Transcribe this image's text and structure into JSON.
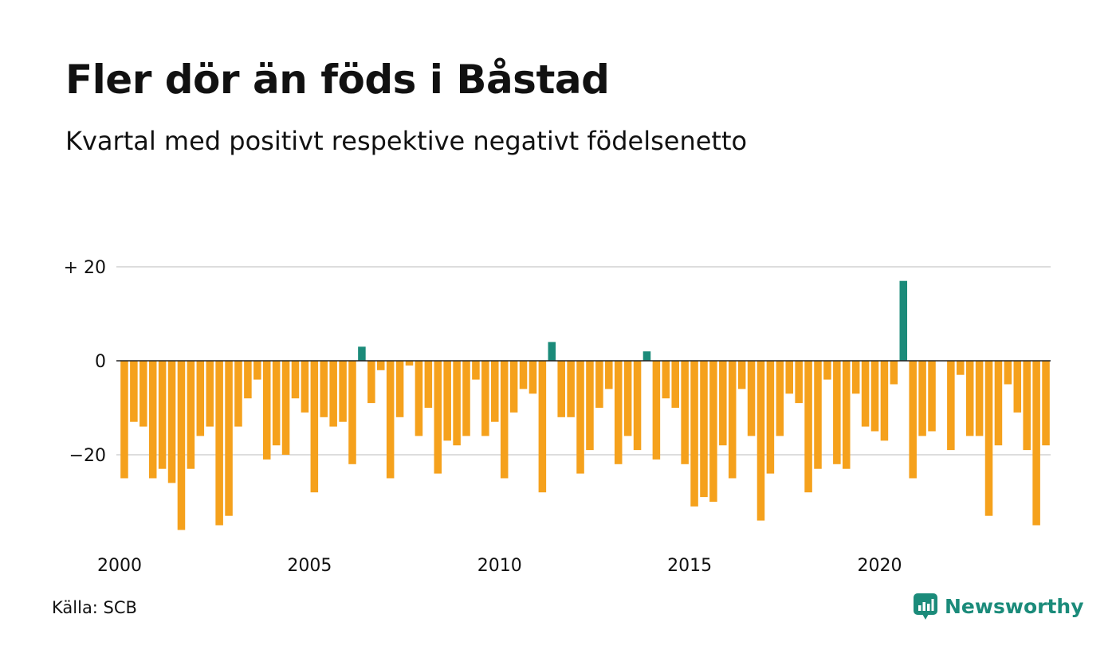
{
  "title": "Fler dör än föds i Båstad",
  "subtitle": "Kvartal med positivt respektive negativt födelsenetto",
  "source": "Källa: SCB",
  "brand": "Newsworthy",
  "colors": {
    "positive": "#1b8b7a",
    "negative": "#f5a11c",
    "grid": "#dddddd",
    "zero_line": "#222222",
    "brand": "#1b8b7a"
  },
  "chart_data": {
    "type": "bar",
    "title": "Fler dör än föds i Båstad",
    "subtitle": "Kvartal med positivt respektive negativt födelsenetto",
    "xlabel": "",
    "ylabel": "",
    "x_range": [
      2000,
      2024.75
    ],
    "ylim": [
      -36,
      22
    ],
    "y_ticks": [
      {
        "value": 20,
        "label": "+ 20"
      },
      {
        "value": 0,
        "label": "0"
      },
      {
        "value": -20,
        "label": "−20"
      }
    ],
    "x_ticks": [
      {
        "value": 2000,
        "label": "2000"
      },
      {
        "value": 2005,
        "label": "2005"
      },
      {
        "value": 2010,
        "label": "2010"
      },
      {
        "value": 2015,
        "label": "2015"
      },
      {
        "value": 2020,
        "label": "2020"
      }
    ],
    "grid": true,
    "legend": "none",
    "series": [
      {
        "values": [
          -25,
          -13,
          -14,
          -25,
          -23,
          -26,
          -36,
          -23,
          -16,
          -14,
          -35,
          -33,
          -14,
          -8,
          -4,
          -21,
          -18,
          -20,
          -8,
          -11,
          -28,
          -12,
          -14,
          -13,
          -22,
          3,
          -9,
          -2,
          -25,
          -12,
          -1,
          -16,
          -10,
          -24,
          -17,
          -18,
          -16,
          -4,
          -16,
          -13,
          -25,
          -11,
          -6,
          -7,
          -28,
          4,
          -12,
          -12,
          -24,
          -19,
          -10,
          -6,
          -22,
          -16,
          -19,
          2,
          -21,
          -8,
          -10,
          -22,
          -31,
          -29,
          -30,
          -18,
          -25,
          -6,
          -16,
          -34,
          -24,
          -16,
          -7,
          -9,
          -28,
          -23,
          -4,
          -22,
          -23,
          -7,
          -14,
          -15,
          -17,
          -5,
          17,
          -25,
          -16,
          -15,
          0,
          -19,
          -3,
          -16,
          -16,
          -33,
          -18,
          -5,
          -11,
          -19,
          -35,
          -18
        ]
      }
    ]
  }
}
